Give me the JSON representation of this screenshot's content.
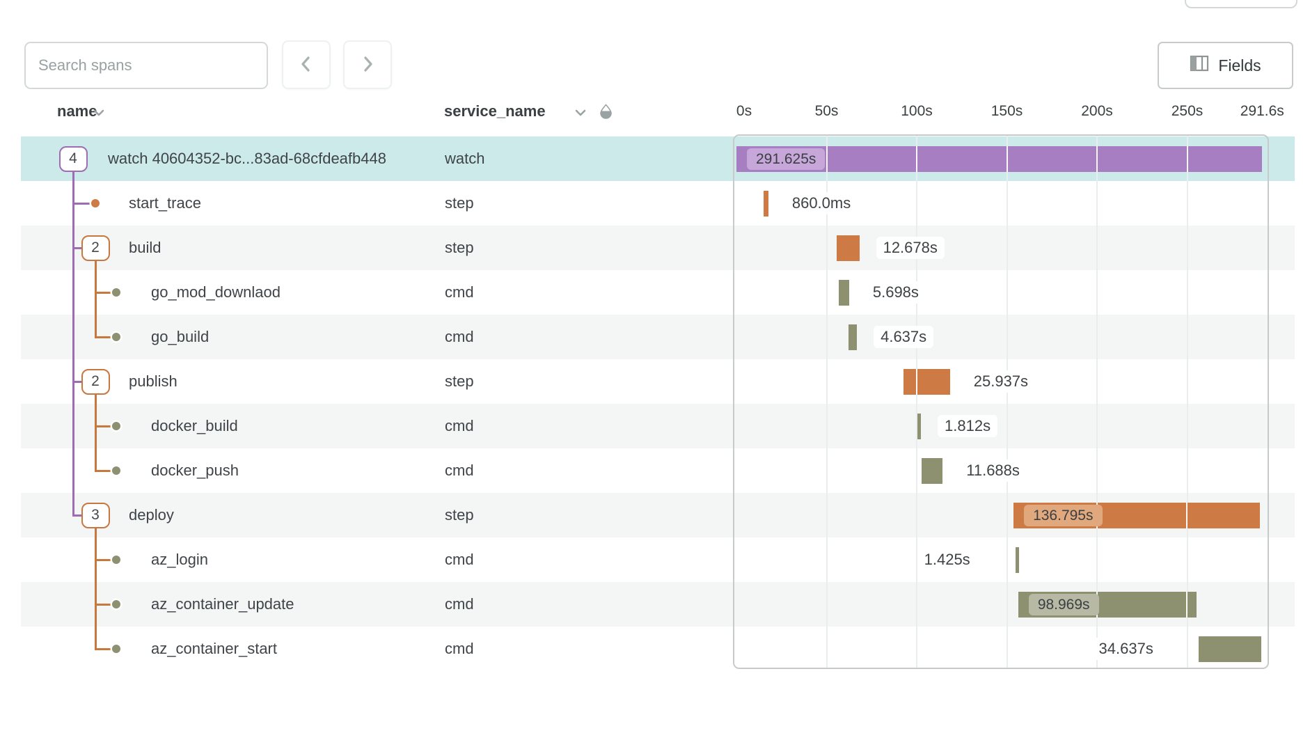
{
  "toolbar": {
    "search_placeholder": "Search spans",
    "fields_label": "Fields"
  },
  "table": {
    "columns": [
      {
        "key": "name",
        "label": "name"
      },
      {
        "key": "service_name",
        "label": "service_name"
      }
    ]
  },
  "chart_data": {
    "type": "gantt",
    "x_unit": "s",
    "x_range": [
      0,
      291.6
    ],
    "grid": true,
    "gridlines_s": [
      50,
      100,
      150,
      200,
      250
    ],
    "axis_ticks": [
      {
        "label": "0s",
        "t": 0
      },
      {
        "label": "50s",
        "t": 50
      },
      {
        "label": "100s",
        "t": 100
      },
      {
        "label": "150s",
        "t": 150
      },
      {
        "label": "200s",
        "t": 200
      },
      {
        "label": "250s",
        "t": 250
      },
      {
        "label": "291.6s",
        "t": 291.6
      }
    ],
    "spans": [
      {
        "name": "watch 40604352-bc...83ad-68cfdeafb448",
        "service_name": "watch",
        "depth": 0,
        "children_count": "4",
        "duration_label": "291.625s",
        "start_s": 0,
        "duration_s": 291.625,
        "color": "purple",
        "label_position": "inside",
        "selected": true
      },
      {
        "name": "start_trace",
        "service_name": "step",
        "depth": 1,
        "children_count": null,
        "duration_label": "860.0ms",
        "start_s": 15.0,
        "duration_s": 0.86,
        "color": "orange",
        "label_position": "right",
        "selected": false
      },
      {
        "name": "build",
        "service_name": "step",
        "depth": 1,
        "children_count": "2",
        "duration_label": "12.678s",
        "start_s": 55.5,
        "duration_s": 12.678,
        "color": "orange",
        "label_position": "right",
        "selected": false
      },
      {
        "name": "go_mod_downlaod",
        "service_name": "cmd",
        "depth": 2,
        "children_count": null,
        "duration_label": "5.698s",
        "start_s": 56.8,
        "duration_s": 5.698,
        "color": "olive",
        "label_position": "right",
        "selected": false
      },
      {
        "name": "go_build",
        "service_name": "cmd",
        "depth": 2,
        "children_count": null,
        "duration_label": "4.637s",
        "start_s": 62.2,
        "duration_s": 4.637,
        "color": "olive",
        "label_position": "right",
        "selected": false
      },
      {
        "name": "publish",
        "service_name": "step",
        "depth": 1,
        "children_count": "2",
        "duration_label": "25.937s",
        "start_s": 92.5,
        "duration_s": 25.937,
        "color": "orange",
        "label_position": "right",
        "selected": false
      },
      {
        "name": "docker_build",
        "service_name": "cmd",
        "depth": 2,
        "children_count": null,
        "duration_label": "1.812s",
        "start_s": 100.4,
        "duration_s": 1.812,
        "color": "olive",
        "label_position": "right",
        "selected": false
      },
      {
        "name": "docker_push",
        "service_name": "cmd",
        "depth": 2,
        "children_count": null,
        "duration_label": "11.688s",
        "start_s": 102.7,
        "duration_s": 11.688,
        "color": "olive",
        "label_position": "right",
        "selected": false
      },
      {
        "name": "deploy",
        "service_name": "step",
        "depth": 1,
        "children_count": "3",
        "duration_label": "136.795s",
        "start_s": 153.7,
        "duration_s": 136.795,
        "color": "orange",
        "label_position": "inside",
        "selected": false
      },
      {
        "name": "az_login",
        "service_name": "cmd",
        "depth": 2,
        "children_count": null,
        "duration_label": "1.425s",
        "start_s": 154.7,
        "duration_s": 1.425,
        "color": "olive",
        "label_position": "left",
        "selected": false
      },
      {
        "name": "az_container_update",
        "service_name": "cmd",
        "depth": 2,
        "children_count": null,
        "duration_label": "98.969s",
        "start_s": 156.3,
        "duration_s": 98.969,
        "color": "olive",
        "label_position": "inside",
        "selected": false
      },
      {
        "name": "az_container_start",
        "service_name": "cmd",
        "depth": 2,
        "children_count": null,
        "duration_label": "34.637s",
        "start_s": 256.3,
        "duration_s": 34.637,
        "color": "olive",
        "label_position": "left",
        "selected": false
      }
    ]
  },
  "colors": {
    "purple_bar": "#a87ec3",
    "purple_line": "#9d6cb3",
    "purple_chip": "#c7a6d9",
    "orange_bar": "#cd7a45",
    "orange_line": "#c8773e",
    "orange_chip": "#e1a87e",
    "olive_bar": "#8d9170",
    "olive_chip": "#b7b9a5",
    "selected_row": "#cbeae9",
    "alt_row": "#f4f6f6",
    "gridline": "#eaeded",
    "chart_border": "#c6caca"
  }
}
